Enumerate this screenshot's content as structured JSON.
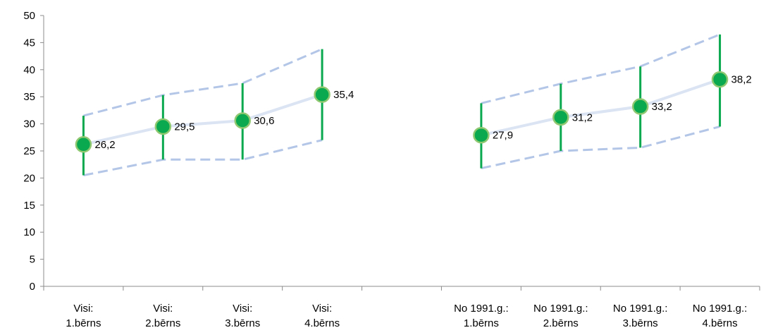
{
  "chart_data": {
    "type": "scatter",
    "title": "",
    "xlabel": "",
    "ylabel": "",
    "ylim": [
      0,
      50
    ],
    "yticks": [
      0,
      5,
      10,
      15,
      20,
      25,
      30,
      35,
      40,
      45,
      50
    ],
    "grid": false,
    "legend": "none",
    "categories": [
      [
        "Visi:",
        "1.bērns"
      ],
      [
        "Visi:",
        "2.bērns"
      ],
      [
        "Visi:",
        "3.bērns"
      ],
      [
        "Visi:",
        "4.bērns"
      ],
      [
        "",
        ""
      ],
      [
        "No 1991.g.:",
        "1.bērns"
      ],
      [
        "No 1991.g.:",
        "2.bērns"
      ],
      [
        "No 1991.g.:",
        "3.bērns"
      ],
      [
        "No 1991.g.:",
        "4.bērns"
      ]
    ],
    "groups": [
      {
        "category_indices": [
          0,
          1,
          2,
          3
        ],
        "values": [
          26.2,
          29.5,
          30.6,
          35.4
        ],
        "value_labels": [
          "26,2",
          "29,5",
          "30,6",
          "35,4"
        ],
        "upper": [
          31.5,
          35.3,
          37.5,
          43.8
        ],
        "lower": [
          20.5,
          23.4,
          23.4,
          27.0
        ]
      },
      {
        "category_indices": [
          5,
          6,
          7,
          8
        ],
        "values": [
          27.9,
          31.2,
          33.2,
          38.2
        ],
        "value_labels": [
          "27,9",
          "31,2",
          "33,2",
          "38,2"
        ],
        "upper": [
          33.8,
          37.4,
          40.6,
          46.5
        ],
        "lower": [
          21.8,
          25.0,
          25.6,
          29.5
        ]
      }
    ],
    "colors": {
      "marker": "#0aa84f",
      "marker_edge": "#8fc870",
      "error_bar": "#0aa84f",
      "mean_line": "#dbe4f3",
      "band_line": "#b4c6e7",
      "axis": "#8c8c8c"
    }
  }
}
